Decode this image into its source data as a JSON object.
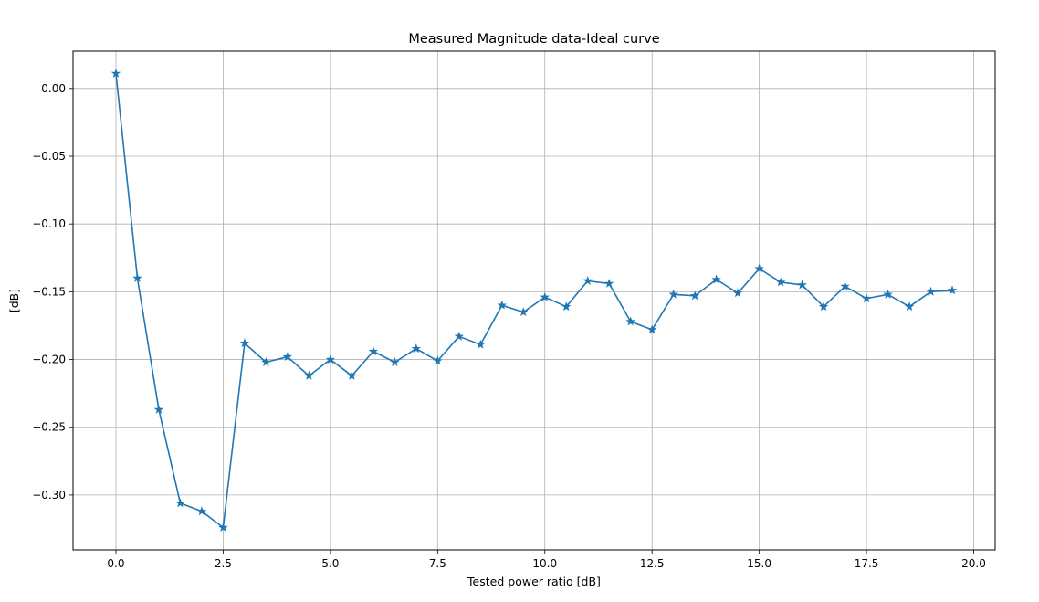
{
  "chart_data": {
    "type": "line",
    "title": "Measured Magnitude data-Ideal curve",
    "xlabel": "Tested power ratio [dB]",
    "ylabel": "[dB]",
    "xlim": [
      -1.0,
      20.5
    ],
    "ylim": [
      -0.3405,
      0.0275
    ],
    "xticks": [
      0.0,
      2.5,
      5.0,
      7.5,
      10.0,
      12.5,
      15.0,
      17.5,
      20.0
    ],
    "xtick_labels": [
      "0.0",
      "2.5",
      "5.0",
      "7.5",
      "10.0",
      "12.5",
      "15.0",
      "17.5",
      "20.0"
    ],
    "yticks": [
      0.0,
      -0.05,
      -0.1,
      -0.15,
      -0.2,
      -0.25,
      -0.3
    ],
    "ytick_labels": [
      "0.00",
      "−0.05",
      "−0.10",
      "−0.15",
      "−0.20",
      "−0.25",
      "−0.30"
    ],
    "grid": true,
    "marker": "star",
    "series": [
      {
        "color": "#1f77b4",
        "x": [
          0.0,
          0.5,
          1.0,
          1.5,
          2.0,
          2.5,
          3.0,
          3.5,
          4.0,
          4.5,
          5.0,
          5.5,
          6.0,
          6.5,
          7.0,
          7.5,
          8.0,
          8.5,
          9.0,
          9.5,
          10.0,
          10.5,
          11.0,
          11.5,
          12.0,
          12.5,
          13.0,
          13.5,
          14.0,
          14.5,
          15.0,
          15.5,
          16.0,
          16.5,
          17.0,
          17.5,
          18.0,
          18.5,
          19.0,
          19.5
        ],
        "y": [
          0.011,
          -0.14,
          -0.237,
          -0.306,
          -0.312,
          -0.324,
          -0.188,
          -0.202,
          -0.198,
          -0.212,
          -0.2,
          -0.212,
          -0.194,
          -0.202,
          -0.192,
          -0.201,
          -0.183,
          -0.189,
          -0.16,
          -0.165,
          -0.154,
          -0.161,
          -0.142,
          -0.144,
          -0.172,
          -0.178,
          -0.152,
          -0.153,
          -0.141,
          -0.151,
          -0.133,
          -0.143,
          -0.145,
          -0.161,
          -0.146,
          -0.155,
          -0.152,
          -0.161,
          -0.15,
          -0.149
        ]
      }
    ]
  }
}
